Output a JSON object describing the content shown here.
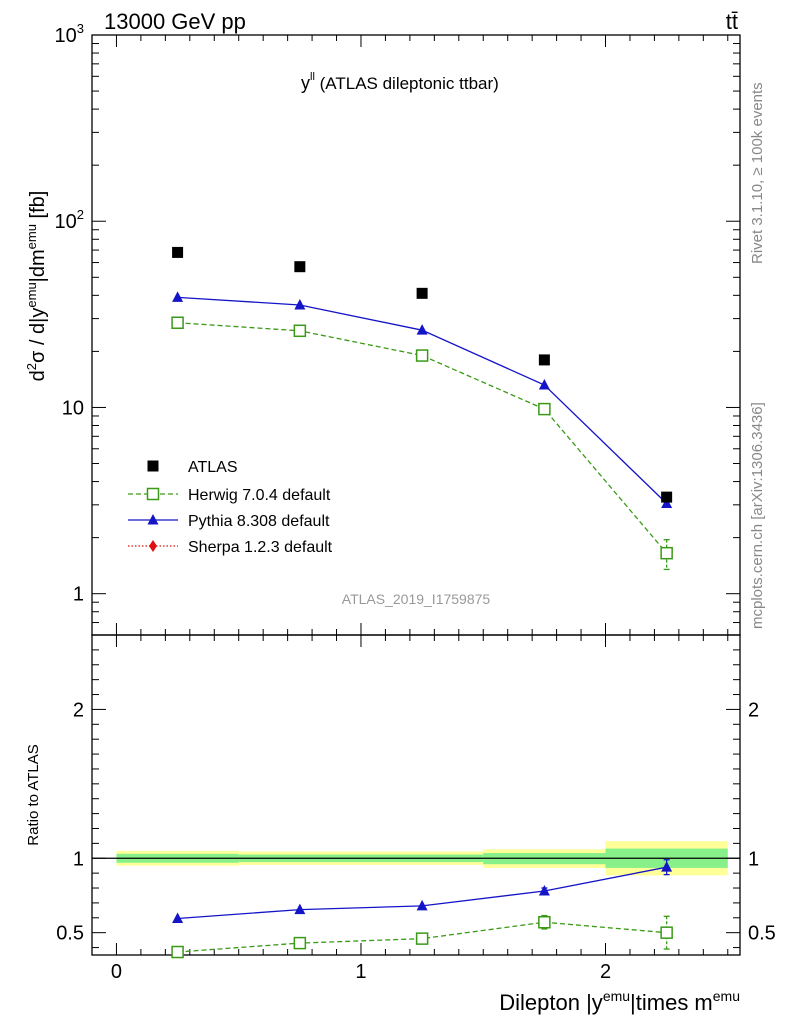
{
  "header": {
    "left": "13000 GeV pp",
    "right": "tt̄"
  },
  "plot_title": {
    "main": "y",
    "sup": "ll",
    "rest": " (ATLAS dileptonic ttbar)"
  },
  "side_labels": {
    "rivet": "Rivet 3.1.10, ≥ 100k events",
    "mcplots": "mcplots.cern.ch [arXiv:1306.3436]"
  },
  "watermark": "ATLAS_2019_I1759875",
  "axes": {
    "ylabel_top": "d²σ / d|y^emu|dm^emu [fb]",
    "ylabel_bottom": "Ratio to ATLAS",
    "xlabel": "Dilepton |y^emu|times m^emu"
  },
  "colors": {
    "atlas": "#000000",
    "herwig": "#3a9a17",
    "pythia": "#1515c8",
    "sherpa": "#e01010",
    "band_outer": "#ffff99",
    "band_inner": "#88f088"
  },
  "chart_data": [
    {
      "type": "scatter",
      "panel": "main",
      "yscale": "log",
      "ylim": [
        0.6,
        1000
      ],
      "xlim": [
        -0.1,
        2.55
      ],
      "xticks": [
        0,
        1,
        2
      ],
      "yticks": [
        1,
        10,
        100,
        1000
      ],
      "ytick_labels": [
        "1",
        "10",
        "10^2",
        "10^3"
      ],
      "legend_position": "lower-left",
      "series": [
        {
          "name": "ATLAS",
          "style": "data",
          "x": [
            0.25,
            0.75,
            1.25,
            1.75,
            2.25
          ],
          "y": [
            68,
            57,
            41,
            18,
            3.3
          ]
        },
        {
          "name": "Herwig 7.0.4 default",
          "style": "dashed-open-square",
          "x": [
            0.25,
            0.75,
            1.25,
            1.75,
            2.25
          ],
          "y": [
            28.5,
            25.8,
            19.0,
            9.8,
            1.65
          ],
          "yerr": [
            0,
            0,
            0,
            0,
            0.3
          ]
        },
        {
          "name": "Pythia 8.308 default",
          "style": "solid-triangle",
          "x": [
            0.25,
            0.75,
            1.25,
            1.75,
            2.25
          ],
          "y": [
            39,
            35.5,
            26,
            13.2,
            3.05
          ]
        },
        {
          "name": "Sherpa 1.2.3 default",
          "style": "dotted-diamond",
          "x": [],
          "y": []
        }
      ]
    },
    {
      "type": "line",
      "panel": "ratio",
      "ylim": [
        0.35,
        2.5
      ],
      "xlim": [
        -0.1,
        2.55
      ],
      "xticks": [
        0,
        1,
        2
      ],
      "ytick_labels": [
        "0.5",
        "1",
        "2"
      ],
      "yticks": [
        0.5,
        1,
        2
      ],
      "bands": [
        {
          "x0": 0.0,
          "x1": 0.5,
          "inner": [
            0.97,
            1.03
          ],
          "outer": [
            0.95,
            1.05
          ]
        },
        {
          "x0": 0.5,
          "x1": 1.0,
          "inner": [
            0.975,
            1.025
          ],
          "outer": [
            0.955,
            1.045
          ]
        },
        {
          "x0": 1.0,
          "x1": 1.5,
          "inner": [
            0.975,
            1.025
          ],
          "outer": [
            0.955,
            1.045
          ]
        },
        {
          "x0": 1.5,
          "x1": 2.0,
          "inner": [
            0.96,
            1.035
          ],
          "outer": [
            0.935,
            1.06
          ]
        },
        {
          "x0": 2.0,
          "x1": 2.5,
          "inner": [
            0.935,
            1.065
          ],
          "outer": [
            0.885,
            1.115
          ]
        }
      ],
      "series": [
        {
          "name": "Herwig 7.0.4 default",
          "x": [
            0.25,
            0.75,
            1.25,
            1.75,
            2.25
          ],
          "y": [
            0.37,
            0.43,
            0.46,
            0.57,
            0.5
          ],
          "yerr": [
            0.015,
            0.02,
            0.03,
            0.045,
            0.11
          ]
        },
        {
          "name": "Pythia 8.308 default",
          "x": [
            0.25,
            0.75,
            1.25,
            1.75,
            2.25
          ],
          "y": [
            0.595,
            0.655,
            0.68,
            0.78,
            0.94
          ],
          "yerr": [
            0,
            0,
            0,
            0.02,
            0.05
          ]
        }
      ]
    }
  ]
}
